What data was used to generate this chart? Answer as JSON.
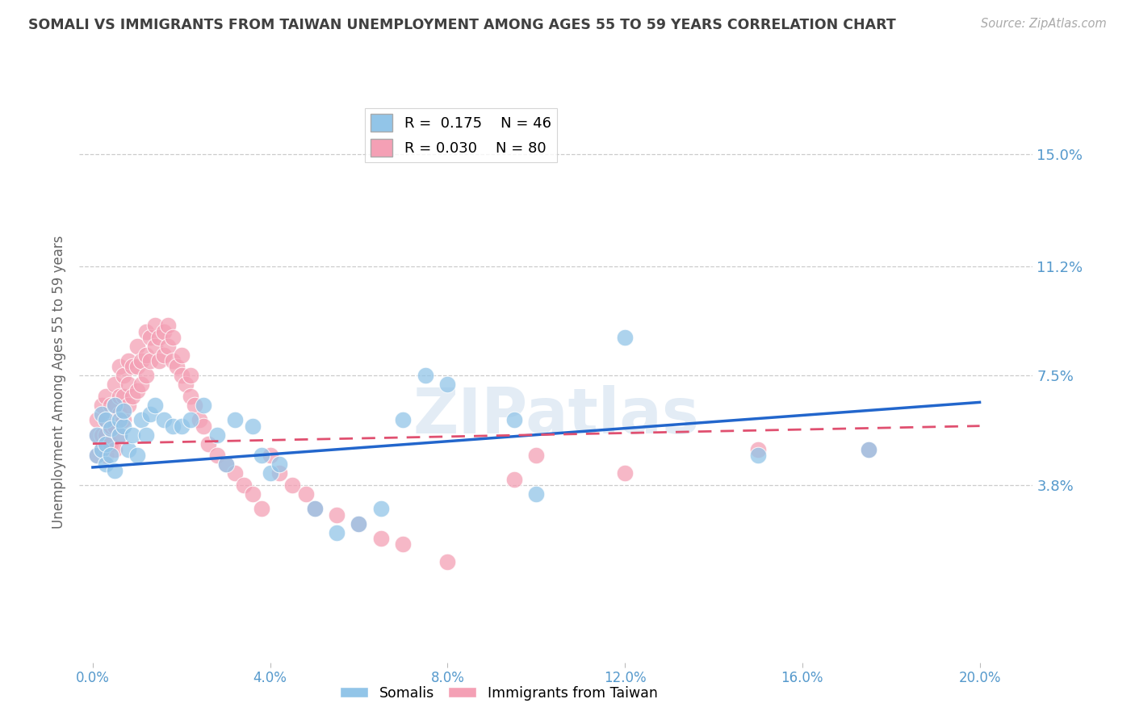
{
  "title": "SOMALI VS IMMIGRANTS FROM TAIWAN UNEMPLOYMENT AMONG AGES 55 TO 59 YEARS CORRELATION CHART",
  "source": "Source: ZipAtlas.com",
  "ylabel_label": "Unemployment Among Ages 55 to 59 years",
  "somali_R": "0.175",
  "somali_N": "46",
  "taiwan_R": "0.030",
  "taiwan_N": "80",
  "somali_color": "#92C5E8",
  "taiwan_color": "#F4A0B5",
  "somali_line_color": "#2266CC",
  "taiwan_line_color": "#E05070",
  "background_color": "#FFFFFF",
  "title_color": "#404040",
  "tick_color": "#5599CC",
  "ytick_vals": [
    0.038,
    0.075,
    0.112,
    0.15
  ],
  "ytick_labels": [
    "3.8%",
    "7.5%",
    "11.2%",
    "15.0%"
  ],
  "xtick_vals": [
    0.0,
    0.04,
    0.08,
    0.12,
    0.16,
    0.2
  ],
  "xtick_labels": [
    "0.0%",
    "4.0%",
    "8.0%",
    "12.0%",
    "16.0%",
    "20.0%"
  ],
  "xlim": [
    -0.003,
    0.212
  ],
  "ylim": [
    -0.022,
    0.168
  ],
  "somali_x": [
    0.001,
    0.001,
    0.002,
    0.002,
    0.003,
    0.003,
    0.003,
    0.004,
    0.004,
    0.005,
    0.005,
    0.006,
    0.006,
    0.007,
    0.007,
    0.008,
    0.009,
    0.01,
    0.011,
    0.012,
    0.013,
    0.014,
    0.016,
    0.018,
    0.02,
    0.022,
    0.025,
    0.028,
    0.03,
    0.032,
    0.036,
    0.038,
    0.04,
    0.042,
    0.05,
    0.055,
    0.06,
    0.065,
    0.07,
    0.075,
    0.08,
    0.095,
    0.1,
    0.12,
    0.15,
    0.175
  ],
  "somali_y": [
    0.048,
    0.055,
    0.05,
    0.062,
    0.045,
    0.052,
    0.06,
    0.048,
    0.057,
    0.043,
    0.065,
    0.055,
    0.06,
    0.058,
    0.063,
    0.05,
    0.055,
    0.048,
    0.06,
    0.055,
    0.062,
    0.065,
    0.06,
    0.058,
    0.058,
    0.06,
    0.065,
    0.055,
    0.045,
    0.06,
    0.058,
    0.048,
    0.042,
    0.045,
    0.03,
    0.022,
    0.025,
    0.03,
    0.06,
    0.075,
    0.072,
    0.06,
    0.035,
    0.088,
    0.048,
    0.05
  ],
  "taiwan_x": [
    0.001,
    0.001,
    0.001,
    0.002,
    0.002,
    0.002,
    0.003,
    0.003,
    0.003,
    0.003,
    0.004,
    0.004,
    0.004,
    0.005,
    0.005,
    0.005,
    0.005,
    0.006,
    0.006,
    0.006,
    0.006,
    0.007,
    0.007,
    0.007,
    0.008,
    0.008,
    0.008,
    0.009,
    0.009,
    0.01,
    0.01,
    0.01,
    0.011,
    0.011,
    0.012,
    0.012,
    0.012,
    0.013,
    0.013,
    0.014,
    0.014,
    0.015,
    0.015,
    0.016,
    0.016,
    0.017,
    0.017,
    0.018,
    0.018,
    0.019,
    0.02,
    0.02,
    0.021,
    0.022,
    0.022,
    0.023,
    0.024,
    0.025,
    0.026,
    0.028,
    0.03,
    0.032,
    0.034,
    0.036,
    0.038,
    0.04,
    0.042,
    0.045,
    0.048,
    0.05,
    0.055,
    0.06,
    0.065,
    0.07,
    0.08,
    0.095,
    0.1,
    0.12,
    0.15,
    0.175
  ],
  "taiwan_y": [
    0.048,
    0.055,
    0.06,
    0.05,
    0.055,
    0.065,
    0.048,
    0.055,
    0.06,
    0.068,
    0.052,
    0.058,
    0.065,
    0.05,
    0.058,
    0.065,
    0.072,
    0.055,
    0.062,
    0.068,
    0.078,
    0.06,
    0.068,
    0.075,
    0.065,
    0.072,
    0.08,
    0.068,
    0.078,
    0.07,
    0.078,
    0.085,
    0.072,
    0.08,
    0.075,
    0.082,
    0.09,
    0.08,
    0.088,
    0.085,
    0.092,
    0.08,
    0.088,
    0.082,
    0.09,
    0.085,
    0.092,
    0.08,
    0.088,
    0.078,
    0.075,
    0.082,
    0.072,
    0.068,
    0.075,
    0.065,
    0.06,
    0.058,
    0.052,
    0.048,
    0.045,
    0.042,
    0.038,
    0.035,
    0.03,
    0.048,
    0.042,
    0.038,
    0.035,
    0.03,
    0.028,
    0.025,
    0.02,
    0.018,
    0.012,
    0.04,
    0.048,
    0.042,
    0.05,
    0.05
  ],
  "somali_line_x": [
    0.0,
    0.2
  ],
  "somali_line_y": [
    0.044,
    0.066
  ],
  "taiwan_line_x": [
    0.0,
    0.2
  ],
  "taiwan_line_y": [
    0.052,
    0.058
  ]
}
